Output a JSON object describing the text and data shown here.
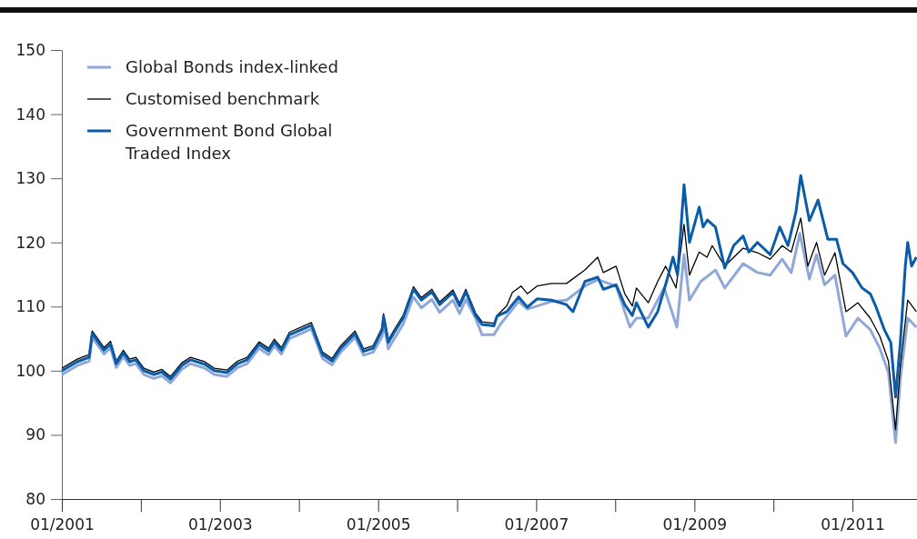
{
  "chart_data": {
    "type": "line",
    "legend": "top left",
    "grid": false,
    "marker": "none",
    "line_style": "solid",
    "xlim": [
      "2001-01-01",
      "2011-10-26"
    ],
    "ylim": [
      80,
      150
    ],
    "yticks": [
      80,
      90,
      100,
      110,
      120,
      130,
      140,
      150
    ],
    "xticks": [
      {
        "value": "2001-01",
        "label": "01/2001"
      },
      {
        "value": "2002-01",
        "label": null
      },
      {
        "value": "2003-01",
        "label": "01/2003"
      },
      {
        "value": "2004-01",
        "label": null
      },
      {
        "value": "2005-01",
        "label": "01/2005"
      },
      {
        "value": "2006-01",
        "label": null
      },
      {
        "value": "2007-01",
        "label": "01/2007"
      },
      {
        "value": "2008-01",
        "label": null
      },
      {
        "value": "2009-01",
        "label": "01/2009"
      },
      {
        "value": "2010-01",
        "label": null
      },
      {
        "value": "2011-01",
        "label": "01/2011"
      }
    ],
    "series": [
      {
        "name": "Global Bonds index-linked",
        "color": "#8fa8d8",
        "x": [
          "2001-01-01",
          "2001-03-13",
          "2001-05-07",
          "2001-05-21",
          "2001-07-15",
          "2001-08-14",
          "2001-09-09",
          "2001-10-12",
          "2001-11-10",
          "2001-12-09",
          "2002-01-15",
          "2002-03-02",
          "2002-04-08",
          "2002-05-18",
          "2002-07-08",
          "2002-08-18",
          "2002-10-23",
          "2002-12-06",
          "2003-02-03",
          "2003-03-24",
          "2003-05-07",
          "2003-07-01",
          "2003-08-14",
          "2003-09-09",
          "2003-10-12",
          "2003-11-18",
          "2004-02-28",
          "2004-04-19",
          "2004-06-02",
          "2004-07-12",
          "2004-09-16",
          "2004-10-26",
          "2004-12-09",
          "2005-01-19",
          "2005-01-26",
          "2005-02-17",
          "2005-03-13",
          "2005-04-26",
          "2005-06-13",
          "2005-07-19",
          "2005-09-06",
          "2005-10-12",
          "2005-12-13",
          "2006-01-12",
          "2006-02-10",
          "2006-03-27",
          "2006-04-26",
          "2006-06-20",
          "2006-07-19",
          "2006-10-12",
          "2006-11-21",
          "2007-03-13",
          "2007-05-21",
          "2007-08-14",
          "2007-10-12",
          "2008-01-05",
          "2008-03-09",
          "2008-04-08",
          "2008-06-02",
          "2008-08-14",
          "2008-10-12",
          "2008-11-14",
          "2008-12-09",
          "2009-01-30",
          "2009-04-08",
          "2009-05-21",
          "2009-08-14",
          "2009-10-19",
          "2009-12-17",
          "2010-02-10",
          "2010-03-24",
          "2010-05-03",
          "2010-06-16",
          "2010-07-19",
          "2010-08-25",
          "2010-10-12",
          "2010-12-02",
          "2011-01-26",
          "2011-03-24",
          "2011-05-07",
          "2011-06-16",
          "2011-07-19",
          "2011-08-10",
          "2011-09-13",
          "2011-10-23"
        ],
        "values": [
          99.4,
          100.8,
          101.5,
          105.2,
          102.6,
          103.6,
          100.5,
          102.2,
          100.8,
          101.1,
          99.4,
          98.8,
          99.2,
          98.1,
          100.2,
          101.1,
          100.4,
          99.4,
          99.1,
          100.5,
          101.1,
          103.5,
          102.5,
          103.9,
          102.6,
          105.0,
          106.5,
          101.9,
          100.9,
          102.9,
          105.2,
          102.4,
          102.9,
          105.3,
          107.5,
          103.4,
          104.8,
          107.2,
          111.5,
          109.8,
          111.1,
          109.1,
          111.0,
          108.9,
          111.1,
          108.2,
          105.6,
          105.6,
          107.2,
          110.8,
          109.6,
          110.8,
          111.0,
          113.2,
          114.2,
          113.2,
          106.8,
          108.2,
          108.2,
          112.9,
          106.8,
          118.1,
          111.0,
          113.9,
          115.7,
          112.9,
          116.7,
          115.3,
          114.9,
          117.4,
          115.3,
          121.4,
          114.3,
          118.1,
          113.4,
          114.9,
          105.4,
          108.2,
          106.4,
          103.5,
          99.7,
          88.8,
          98.7,
          108.2,
          106.8
        ]
      },
      {
        "name": "Customised benchmark",
        "color": "#000000",
        "x": [
          "2001-01-01",
          "2001-03-13",
          "2001-05-07",
          "2001-05-21",
          "2001-07-15",
          "2001-08-14",
          "2001-09-09",
          "2001-10-12",
          "2001-11-10",
          "2001-12-09",
          "2002-01-15",
          "2002-03-02",
          "2002-04-08",
          "2002-05-18",
          "2002-07-08",
          "2002-08-18",
          "2002-10-23",
          "2002-12-06",
          "2003-02-03",
          "2003-03-24",
          "2003-05-07",
          "2003-07-01",
          "2003-08-14",
          "2003-09-09",
          "2003-10-12",
          "2003-11-18",
          "2004-02-28",
          "2004-04-19",
          "2004-06-02",
          "2004-07-12",
          "2004-09-16",
          "2004-10-26",
          "2004-12-09",
          "2005-01-19",
          "2005-01-26",
          "2005-02-17",
          "2005-03-13",
          "2005-04-26",
          "2005-06-13",
          "2005-07-19",
          "2005-09-06",
          "2005-10-12",
          "2005-12-13",
          "2006-01-12",
          "2006-02-10",
          "2006-03-27",
          "2006-04-26",
          "2006-06-20",
          "2006-07-04",
          "2006-08-18",
          "2006-09-13",
          "2006-10-23",
          "2006-11-21",
          "2007-01-05",
          "2007-03-13",
          "2007-05-21",
          "2007-08-14",
          "2007-10-12",
          "2007-11-07",
          "2008-01-05",
          "2008-02-14",
          "2008-03-20",
          "2008-04-08",
          "2008-06-02",
          "2008-07-15",
          "2008-08-21",
          "2008-10-08",
          "2008-11-14",
          "2008-12-09",
          "2009-01-23",
          "2009-02-28",
          "2009-03-24",
          "2009-05-21",
          "2009-08-14",
          "2009-10-19",
          "2009-12-17",
          "2010-02-10",
          "2010-03-24",
          "2010-05-07",
          "2010-06-09",
          "2010-07-19",
          "2010-08-25",
          "2010-10-12",
          "2010-12-02",
          "2011-01-26",
          "2011-03-24",
          "2011-05-07",
          "2011-06-16",
          "2011-07-19",
          "2011-08-10",
          "2011-09-13",
          "2011-10-23"
        ],
        "values": [
          100.4,
          101.8,
          102.5,
          106.2,
          103.6,
          104.6,
          101.5,
          103.2,
          101.8,
          102.1,
          100.4,
          99.8,
          100.2,
          99.1,
          101.2,
          102.1,
          101.4,
          100.4,
          100.1,
          101.5,
          102.1,
          104.5,
          103.5,
          104.9,
          103.6,
          106.0,
          107.5,
          102.9,
          101.9,
          103.9,
          106.2,
          103.4,
          103.9,
          106.7,
          108.9,
          104.8,
          106.2,
          108.6,
          113.1,
          111.4,
          112.7,
          110.7,
          112.6,
          110.5,
          112.7,
          109.0,
          107.6,
          107.4,
          108.6,
          110.1,
          112.2,
          113.2,
          112.0,
          113.2,
          113.6,
          113.6,
          115.7,
          117.7,
          115.3,
          116.3,
          112.0,
          110.1,
          112.9,
          110.6,
          113.9,
          116.3,
          112.9,
          122.8,
          114.9,
          118.5,
          117.7,
          119.5,
          116.3,
          119.1,
          118.4,
          117.4,
          119.5,
          118.5,
          123.8,
          116.3,
          120.0,
          114.9,
          118.4,
          109.2,
          110.6,
          108.2,
          105.4,
          101.5,
          90.8,
          100.7,
          111.0,
          109.2
        ]
      },
      {
        "name": "Government Bond Global Traded Index",
        "color": "#0a5ca8",
        "x": [
          "2001-01-01",
          "2001-03-13",
          "2001-05-07",
          "2001-05-21",
          "2001-07-15",
          "2001-08-14",
          "2001-09-09",
          "2001-10-12",
          "2001-11-10",
          "2001-12-09",
          "2002-01-15",
          "2002-03-02",
          "2002-04-08",
          "2002-05-18",
          "2002-07-08",
          "2002-08-18",
          "2002-10-23",
          "2002-12-06",
          "2003-02-03",
          "2003-03-24",
          "2003-05-07",
          "2003-07-01",
          "2003-08-14",
          "2003-09-09",
          "2003-10-12",
          "2003-11-18",
          "2004-02-28",
          "2004-04-19",
          "2004-06-02",
          "2004-07-12",
          "2004-09-16",
          "2004-10-26",
          "2004-12-09",
          "2005-01-19",
          "2005-01-26",
          "2005-02-17",
          "2005-03-13",
          "2005-04-26",
          "2005-06-13",
          "2005-07-19",
          "2005-09-06",
          "2005-10-12",
          "2005-12-13",
          "2006-01-12",
          "2006-02-10",
          "2006-03-27",
          "2006-04-26",
          "2006-06-20",
          "2006-07-04",
          "2006-08-18",
          "2006-10-12",
          "2006-11-21",
          "2007-01-05",
          "2007-03-13",
          "2007-05-21",
          "2007-06-20",
          "2007-08-14",
          "2007-10-12",
          "2007-11-07",
          "2008-01-05",
          "2008-02-14",
          "2008-03-20",
          "2008-04-08",
          "2008-06-02",
          "2008-07-15",
          "2008-08-25",
          "2008-09-24",
          "2008-10-15",
          "2008-11-14",
          "2008-12-09",
          "2009-01-23",
          "2009-02-10",
          "2009-03-02",
          "2009-04-08",
          "2009-05-21",
          "2009-07-01",
          "2009-08-14",
          "2009-09-09",
          "2009-10-19",
          "2009-12-17",
          "2010-01-30",
          "2010-03-09",
          "2010-04-15",
          "2010-05-07",
          "2010-06-16",
          "2010-07-26",
          "2010-09-09",
          "2010-10-19",
          "2010-11-18",
          "2011-01-01",
          "2011-02-14",
          "2011-03-24",
          "2011-04-19",
          "2011-05-28",
          "2011-06-27",
          "2011-07-19",
          "2011-08-10",
          "2011-09-02",
          "2011-09-13",
          "2011-10-01",
          "2011-10-23"
        ],
        "values": [
          100.0,
          101.4,
          102.1,
          105.8,
          103.2,
          104.2,
          101.1,
          102.8,
          101.4,
          101.7,
          100.0,
          99.4,
          99.8,
          98.7,
          100.8,
          101.7,
          101.0,
          100.0,
          99.7,
          101.1,
          101.7,
          104.1,
          103.1,
          104.5,
          103.2,
          105.6,
          107.1,
          102.5,
          101.5,
          103.5,
          105.8,
          103.0,
          103.5,
          106.3,
          108.5,
          104.4,
          105.8,
          108.2,
          112.7,
          111.0,
          112.3,
          110.3,
          112.2,
          110.1,
          112.3,
          108.6,
          107.2,
          107.0,
          108.5,
          109.2,
          111.5,
          109.9,
          111.2,
          111.0,
          110.3,
          109.2,
          113.9,
          114.6,
          112.7,
          113.4,
          110.3,
          108.6,
          110.6,
          106.8,
          109.2,
          113.9,
          117.7,
          114.9,
          129.0,
          120.0,
          125.5,
          122.4,
          123.5,
          122.4,
          116.0,
          119.5,
          121.0,
          118.5,
          120.0,
          118.1,
          122.4,
          119.5,
          124.8,
          130.4,
          123.4,
          126.6,
          120.5,
          120.5,
          116.7,
          115.3,
          112.9,
          112.0,
          110.0,
          106.4,
          104.4,
          95.9,
          104.4,
          116.3,
          120.0,
          116.3,
          117.7
        ]
      }
    ]
  }
}
